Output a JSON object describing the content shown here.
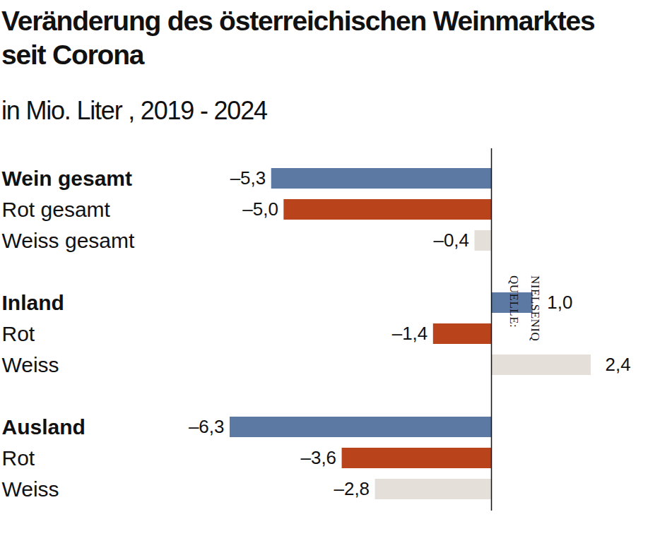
{
  "chart_data": {
    "type": "bar",
    "orientation": "horizontal",
    "title": "Veränderung des österreichischen Weinmarktes seit Corona",
    "subtitle": "in Mio. Liter , 2019 - 2024",
    "source": "QUELLE: NIELSENIQ",
    "categories": [
      "Wein gesamt",
      "Rot gesamt",
      "Weiss gesamt",
      "Inland",
      "Rot",
      "Weiss",
      "Ausland",
      "Rot",
      "Weiss"
    ],
    "values": [
      -5.3,
      -5.0,
      -0.4,
      1.0,
      -1.4,
      2.4,
      -6.3,
      -3.6,
      -2.8
    ],
    "value_labels": [
      "–5,3",
      "–5,0",
      "–0,4",
      "1,0",
      "–1,4",
      "2,4",
      "–6,3",
      "–3,6",
      "–2,8"
    ],
    "colors": [
      "#5b79a3",
      "#b9441c",
      "#e4dfd9",
      "#5b79a3",
      "#b9441c",
      "#e4dfd9",
      "#5b79a3",
      "#b9441c",
      "#e4dfd9"
    ],
    "xlim": [
      -6.3,
      2.4
    ],
    "data_labels": true,
    "tick_labels": false,
    "grid": false
  }
}
